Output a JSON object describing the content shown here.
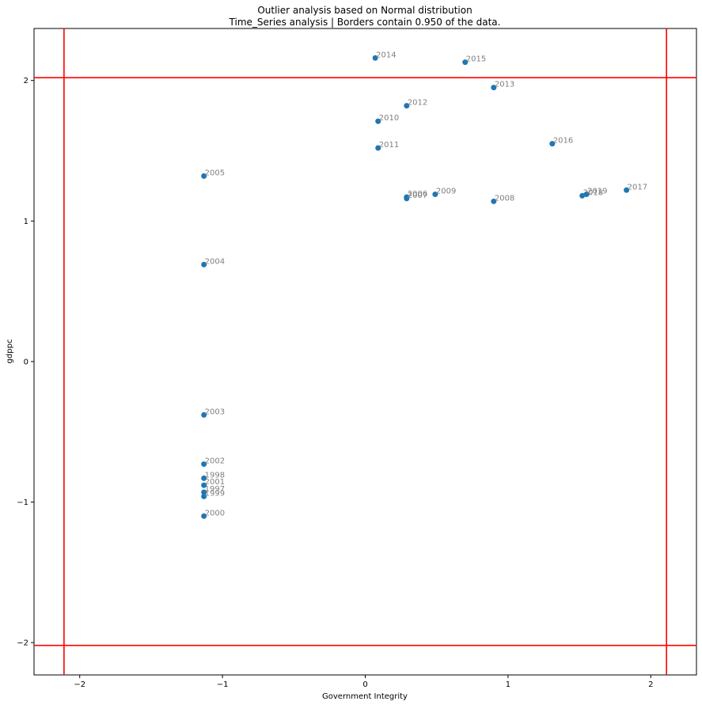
{
  "chart_data": {
    "type": "scatter",
    "title": "Outlier analysis based on Normal distribution",
    "subtitle": "Time_Series analysis | Borders contain 0.950 of the data.",
    "xlabel": "Government Integrity",
    "ylabel": "gdppc",
    "xlim": [
      -2.32,
      2.32
    ],
    "ylim": [
      -2.23,
      2.37
    ],
    "xticks": [
      -2,
      -1,
      0,
      1,
      2
    ],
    "yticks": [
      -2,
      -1,
      0,
      1,
      2
    ],
    "xtick_labels": [
      "−2",
      "−1",
      "0",
      "1",
      "2"
    ],
    "ytick_labels": [
      "−2",
      "−1",
      "0",
      "1",
      "2"
    ],
    "grid": false,
    "point_color": "#1f77b4",
    "label_color": "#808080",
    "border_color": "#ff0000",
    "borders": {
      "x": [
        -2.11,
        2.11
      ],
      "y": [
        -2.02,
        2.02
      ]
    },
    "points": [
      {
        "label": "1997",
        "x": -1.13,
        "y": -0.93
      },
      {
        "label": "1998",
        "x": -1.13,
        "y": -0.83
      },
      {
        "label": "1999",
        "x": -1.13,
        "y": -0.96
      },
      {
        "label": "2000",
        "x": -1.13,
        "y": -1.1
      },
      {
        "label": "2001",
        "x": -1.13,
        "y": -0.88
      },
      {
        "label": "2002",
        "x": -1.13,
        "y": -0.73
      },
      {
        "label": "2003",
        "x": -1.13,
        "y": -0.38
      },
      {
        "label": "2004",
        "x": -1.13,
        "y": 0.69
      },
      {
        "label": "2005",
        "x": -1.13,
        "y": 1.32
      },
      {
        "label": "2006",
        "x": 0.29,
        "y": 1.17
      },
      {
        "label": "2007",
        "x": 0.29,
        "y": 1.16
      },
      {
        "label": "2008",
        "x": 0.9,
        "y": 1.14
      },
      {
        "label": "2009",
        "x": 0.49,
        "y": 1.19
      },
      {
        "label": "2010",
        "x": 0.09,
        "y": 1.71
      },
      {
        "label": "2011",
        "x": 0.09,
        "y": 1.52
      },
      {
        "label": "2012",
        "x": 0.29,
        "y": 1.82
      },
      {
        "label": "2013",
        "x": 0.9,
        "y": 1.95
      },
      {
        "label": "2014",
        "x": 0.07,
        "y": 2.16
      },
      {
        "label": "2015",
        "x": 0.7,
        "y": 2.13
      },
      {
        "label": "2016",
        "x": 1.31,
        "y": 1.55
      },
      {
        "label": "2017",
        "x": 1.83,
        "y": 1.22
      },
      {
        "label": "2018",
        "x": 1.52,
        "y": 1.18
      },
      {
        "label": "2019",
        "x": 1.55,
        "y": 1.19
      }
    ]
  }
}
